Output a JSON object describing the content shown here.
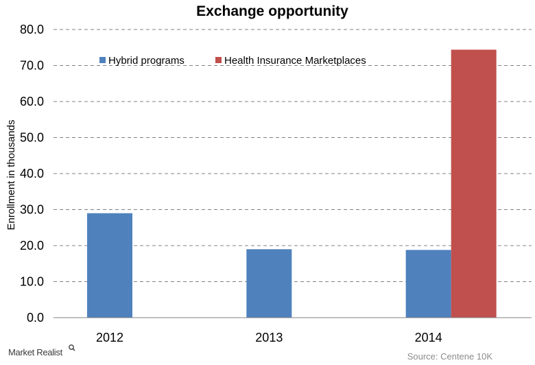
{
  "chart_data": {
    "type": "bar",
    "title": "Exchange  opportunity",
    "ylabel": "Enrollment in thousands",
    "xlabel": "",
    "categories": [
      "2012",
      "2013",
      "2014"
    ],
    "series": [
      {
        "name": "Hybrid programs",
        "color": "#4f81bd",
        "values": [
          29.0,
          19.0,
          18.8
        ]
      },
      {
        "name": "Health Insurance Marketplaces",
        "color": "#c0504d",
        "values": [
          null,
          null,
          74.4
        ]
      }
    ],
    "ylim": [
      0,
      80
    ],
    "yticks": [
      "0.0",
      "10.0",
      "20.0",
      "30.0",
      "40.0",
      "50.0",
      "60.0",
      "70.0",
      "80.0"
    ],
    "grid": true,
    "legend_position": "top-left"
  },
  "footer": {
    "logo": "Market Realist",
    "source": "Source: Centene  10K"
  }
}
